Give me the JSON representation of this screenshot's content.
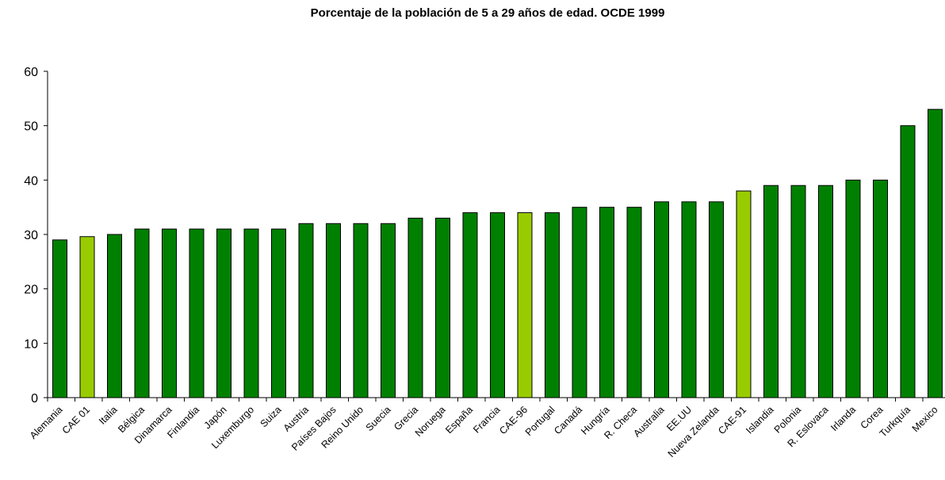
{
  "chart_data": {
    "type": "bar",
    "title": "Porcentaje de la población de 5 a 29 años de edad. OCDE 1999",
    "xlabel": "",
    "ylabel": "",
    "ylim": [
      0,
      60
    ],
    "yticks": [
      0,
      10,
      20,
      30,
      40,
      50,
      60
    ],
    "grid": false,
    "categories": [
      "Alemania",
      "CAE 01",
      "Italia",
      "Bélgica",
      "Dinamarca",
      "Finlandia",
      "Japón",
      "Luxemburgo",
      "Suiza",
      "Austria",
      "Países Bajos",
      "Reino Unido",
      "Suecia",
      "Grecia",
      "Noruega",
      "España",
      "Francia",
      "CAE-96",
      "Portugal",
      "Canadá",
      "Hungría",
      "R. Checa",
      "Australia",
      "EE.UU",
      "Nueva Zelanda",
      "CAE-91",
      "Islandia",
      "Polonia",
      "R. Eslovaca",
      "Irlanda",
      "Corea",
      "Turkquía",
      "Mexico"
    ],
    "values": [
      29,
      29.6,
      30,
      31,
      31,
      31,
      31,
      31,
      31,
      32,
      32,
      32,
      32,
      33,
      33,
      34,
      34,
      34,
      34,
      35,
      35,
      35,
      36,
      36,
      36,
      38,
      39,
      39,
      39,
      40,
      40,
      50,
      53
    ],
    "highlight": [
      "CAE 01",
      "CAE-96",
      "CAE-91"
    ],
    "colors": {
      "bar": "#008000",
      "highlight": "#99CC00",
      "outline": "#000000"
    }
  }
}
